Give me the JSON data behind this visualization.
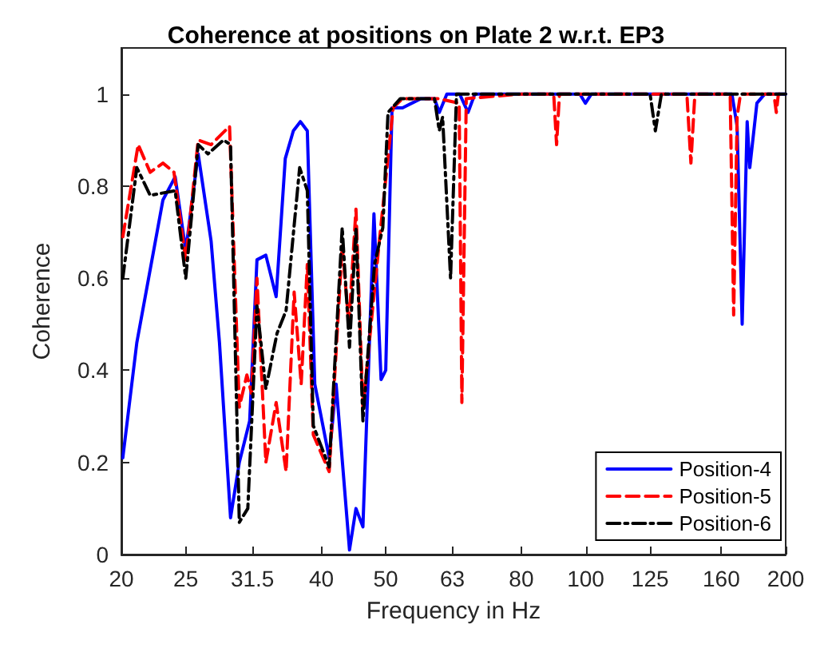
{
  "chart_data": {
    "type": "line",
    "title": "Coherence at positions on Plate 2 w.r.t. EP3",
    "xlabel": "Frequency in Hz",
    "ylabel": "Coherence",
    "log": "x",
    "xlim": [
      20,
      200
    ],
    "xticks": [
      20,
      25,
      31.5,
      40,
      50,
      63,
      80,
      100,
      125,
      160,
      200
    ],
    "ylim": [
      0,
      1.1
    ],
    "yticks": [
      0,
      0.2,
      0.4,
      0.6,
      0.8,
      1
    ],
    "grid": false,
    "legend": "bottom right",
    "marker": "none",
    "series": [
      {
        "name": "Position-4",
        "color": "#0000ff",
        "line_style": "solid",
        "x": [
          20.1,
          21.1,
          23.1,
          24.1,
          25,
          26.1,
          27.3,
          28.1,
          29.2,
          30.1,
          31.2,
          32,
          33,
          34.2,
          35.3,
          36.3,
          37.2,
          38.1,
          39.1,
          41.1,
          42.1,
          44.1,
          45.1,
          46.2,
          48,
          49.2,
          50,
          51.1,
          53,
          56.5,
          59.2,
          60.2,
          61.8,
          64.6,
          66.5,
          68.1,
          80,
          98,
          99.9,
          102,
          130,
          166,
          169,
          172,
          175,
          176.6,
          181,
          186,
          200
        ],
        "values": [
          0.21,
          0.46,
          0.77,
          0.82,
          0.66,
          0.87,
          0.68,
          0.46,
          0.08,
          0.2,
          0.29,
          0.64,
          0.65,
          0.56,
          0.86,
          0.92,
          0.94,
          0.92,
          0.37,
          0.21,
          0.37,
          0.01,
          0.1,
          0.06,
          0.74,
          0.38,
          0.4,
          0.97,
          0.97,
          0.99,
          0.99,
          0.96,
          1,
          1,
          0.96,
          1,
          1,
          1,
          0.98,
          1,
          1,
          1,
          0.93,
          0.5,
          0.94,
          0.84,
          0.98,
          1,
          1
        ]
      },
      {
        "name": "Position-5",
        "color": "#ff0000",
        "line_style": "dashed",
        "x": [
          20.1,
          21.2,
          22.1,
          23.1,
          24,
          25,
          26.1,
          27.3,
          29.1,
          30.1,
          30.9,
          31.4,
          32,
          33,
          34.2,
          35.4,
          36.4,
          37.3,
          38.1,
          38.9,
          41.1,
          43,
          44,
          45.1,
          46.2,
          48.9,
          51.3,
          53,
          60,
          64.5,
          65.1,
          66.1,
          80,
          89.5,
          90.4,
          91.3,
          120,
          142,
          144,
          146,
          165,
          167,
          169,
          171,
          192,
          193.6,
          195,
          200
        ],
        "values": [
          0.69,
          0.89,
          0.83,
          0.85,
          0.83,
          0.64,
          0.9,
          0.89,
          0.93,
          0.32,
          0.39,
          0.35,
          0.6,
          0.2,
          0.33,
          0.18,
          0.57,
          0.37,
          0.63,
          0.26,
          0.18,
          0.67,
          0.5,
          0.75,
          0.32,
          0.68,
          0.97,
          0.99,
          0.99,
          0.98,
          0.33,
          0.99,
          1,
          1,
          0.89,
          1,
          1,
          1,
          0.85,
          1,
          1,
          0.52,
          0.95,
          1,
          1,
          0.96,
          1,
          1
        ]
      },
      {
        "name": "Position-6",
        "color": "#000000",
        "line_style": "dashdot",
        "x": [
          20.1,
          21.1,
          22.1,
          24.1,
          25,
          26.1,
          27,
          28.5,
          29.2,
          30.1,
          31,
          32,
          33,
          34.3,
          35.4,
          37.1,
          38.1,
          38.9,
          41.1,
          43,
          44.1,
          45.1,
          46.2,
          48.1,
          49.5,
          50.4,
          52.6,
          59.2,
          60.2,
          60.9,
          62.6,
          63.9,
          80,
          125,
          127.3,
          130,
          200
        ],
        "values": [
          0.6,
          0.84,
          0.78,
          0.79,
          0.6,
          0.89,
          0.87,
          0.9,
          0.89,
          0.07,
          0.1,
          0.54,
          0.36,
          0.48,
          0.53,
          0.84,
          0.79,
          0.28,
          0.19,
          0.71,
          0.45,
          0.71,
          0.29,
          0.63,
          0.71,
          0.96,
          0.99,
          0.99,
          0.92,
          0.95,
          0.6,
          1,
          1,
          1,
          0.92,
          1,
          1
        ]
      }
    ]
  }
}
